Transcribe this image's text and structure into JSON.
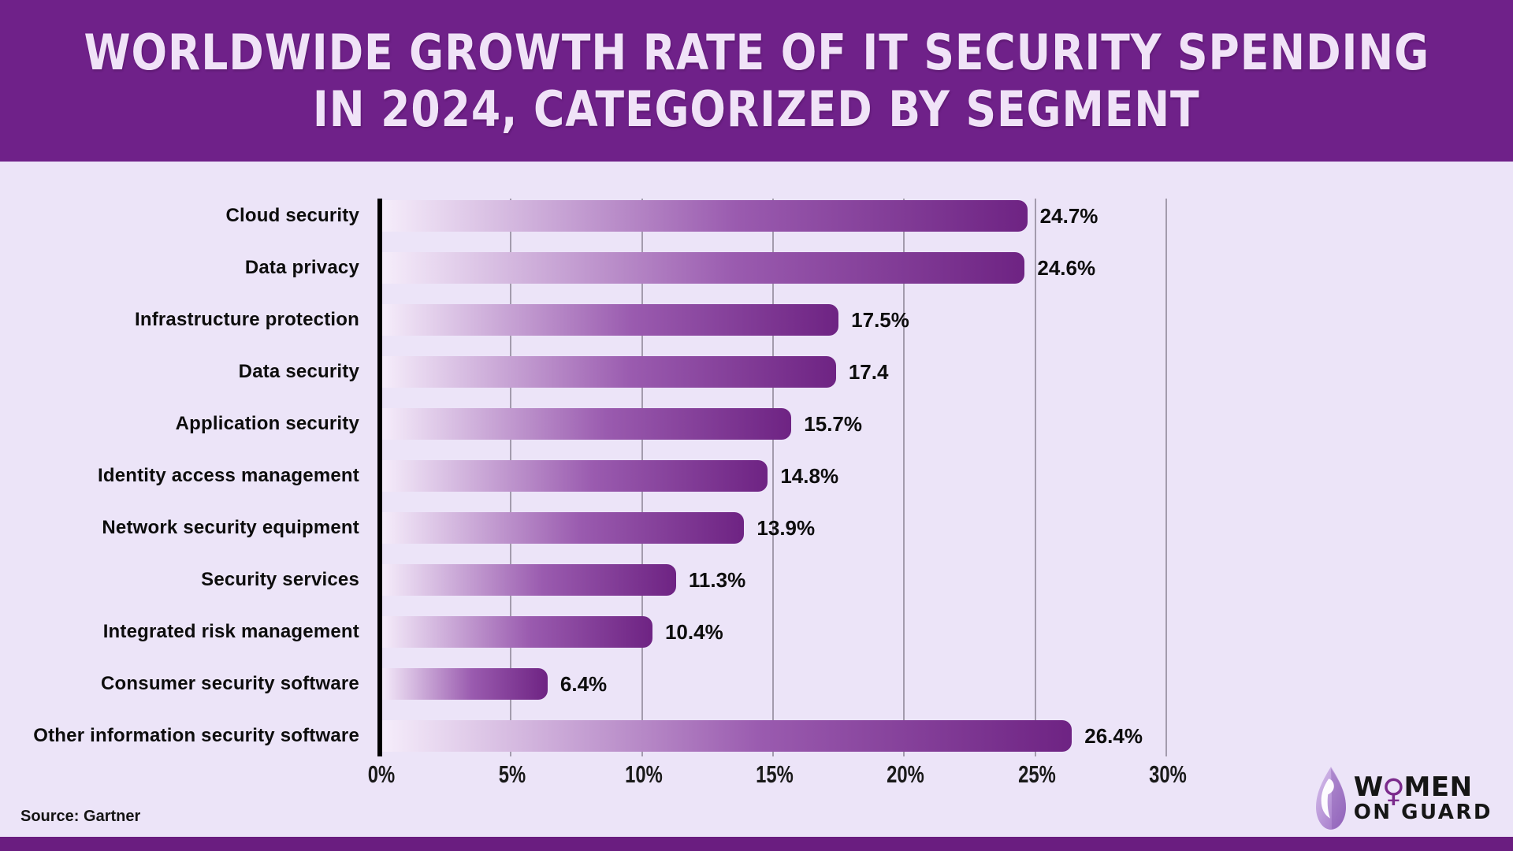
{
  "header": {
    "title_line1": "WORLDWIDE GROWTH RATE OF IT SECURITY SPENDING",
    "title_line2": "IN 2024, CATEGORIZED BY SEGMENT"
  },
  "chart_data": {
    "type": "bar",
    "orientation": "horizontal",
    "title": "Worldwide growth rate of IT security spending in 2024, categorized by segment",
    "categories": [
      "Cloud security",
      "Data privacy",
      "Infrastructure protection",
      "Data security",
      "Application security",
      "Identity access management",
      "Network security equipment",
      "Security services",
      "Integrated risk management",
      "Consumer security software",
      "Other information security software"
    ],
    "values": [
      24.7,
      24.6,
      17.5,
      17.4,
      15.7,
      14.8,
      13.9,
      11.3,
      10.4,
      6.4,
      26.4
    ],
    "value_labels": [
      "24.7%",
      "24.6%",
      "17.5%",
      "17.4",
      "15.7%",
      "14.8%",
      "13.9%",
      "11.3%",
      "10.4%",
      "6.4%",
      "26.4%"
    ],
    "xlim": [
      0,
      30
    ],
    "x_ticks": [
      "0%",
      "5%",
      "10%",
      "15%",
      "20%",
      "25%",
      "30%"
    ],
    "x_tick_values": [
      0,
      5,
      10,
      15,
      20,
      25,
      30
    ],
    "grid": "vertical-behind-bars",
    "legend": "none",
    "bar_gradient": [
      "#f6eefb",
      "#9a5baf",
      "#6e2383"
    ]
  },
  "footer": {
    "source": "Source: Gartner"
  },
  "logo": {
    "line1_pre": "W",
    "symbol": "♀",
    "line1_post": "MEN",
    "line2": "ON GUARD",
    "leaf_icon": "woman-face-leaf-icon"
  },
  "colors": {
    "header_bg": "#6f2189",
    "page_bg": "#ece4f8",
    "bottom_bar": "#6a1d80",
    "bar_gradient_start": "#f6eefb",
    "bar_gradient_end": "#6e2383",
    "axis": "#000000",
    "gridline": "#a39bad",
    "title_fg": "#f0e3f7",
    "logo_purple": "#7b2a8c"
  }
}
